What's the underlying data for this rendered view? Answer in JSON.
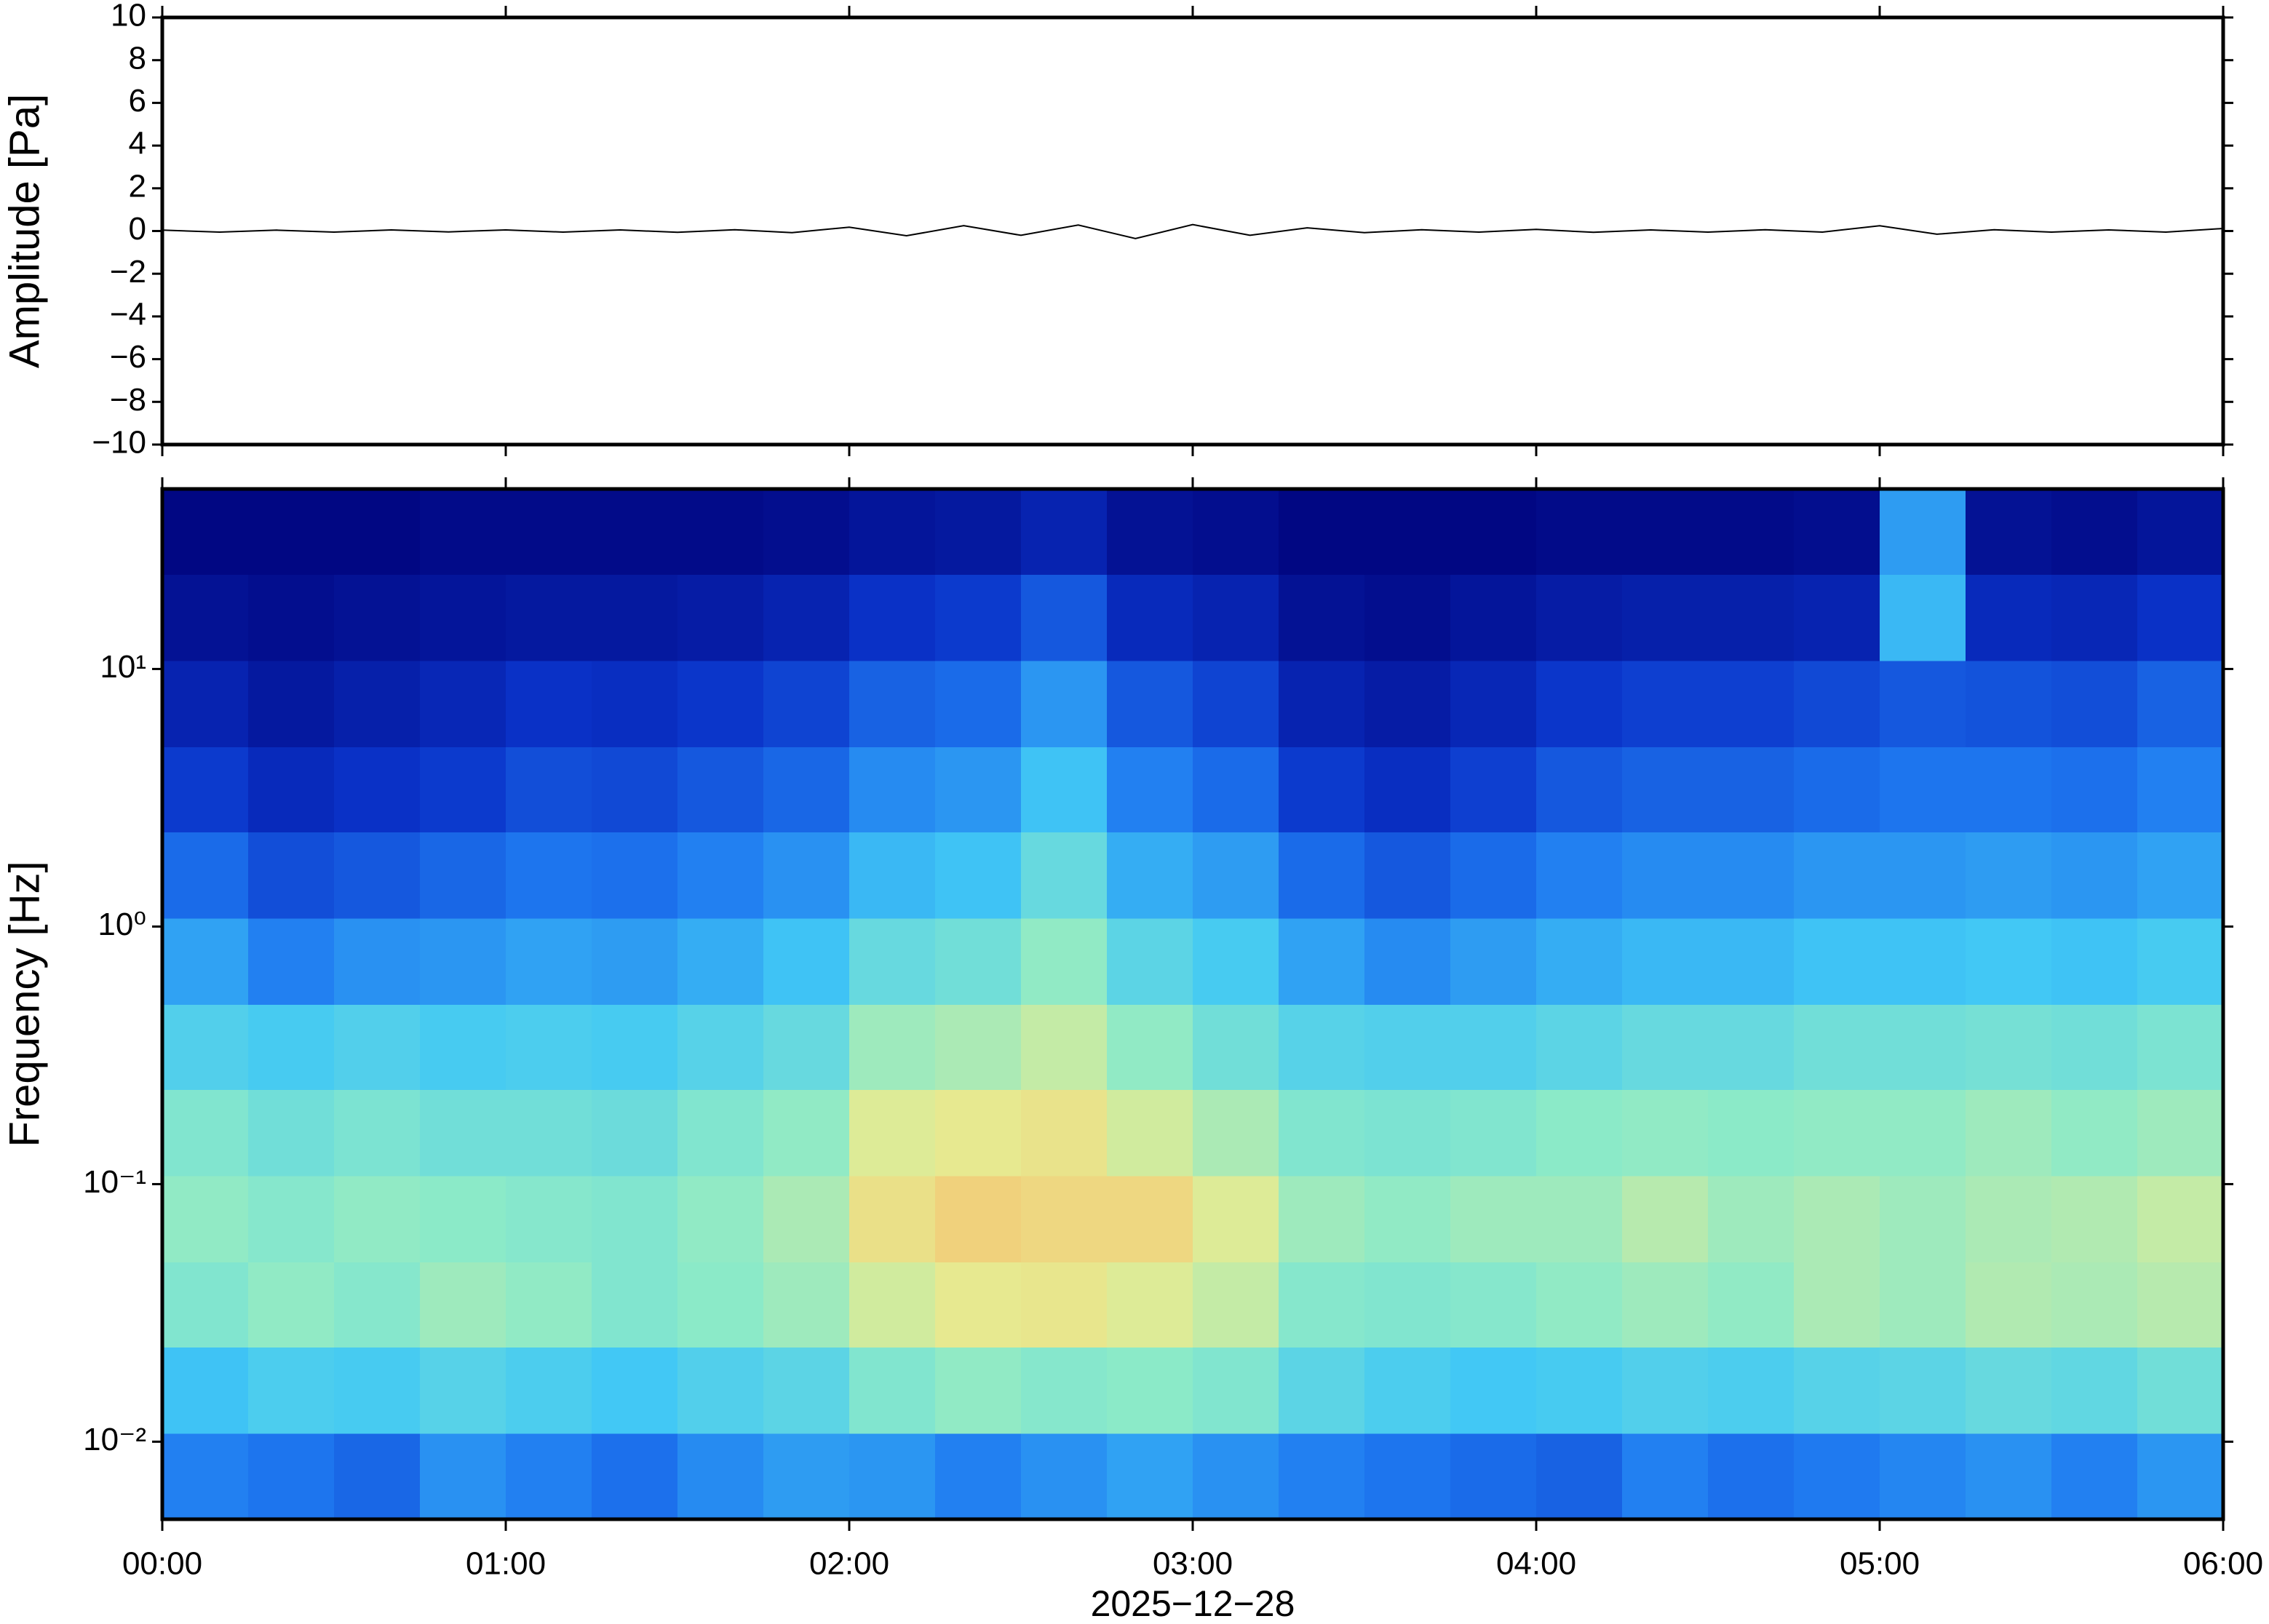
{
  "chart_data": [
    {
      "type": "line",
      "ylabel": "Amplitude [Pa]",
      "x": [
        0,
        10,
        20,
        30,
        40,
        50,
        60,
        70,
        80,
        90,
        100,
        110,
        120,
        130,
        140,
        150,
        160,
        170,
        180,
        190,
        200,
        210,
        220,
        230,
        240,
        250,
        260,
        270,
        280,
        290,
        300,
        310,
        320,
        330,
        340,
        350,
        360
      ],
      "values": [
        0.04,
        -0.05,
        0.04,
        -0.05,
        0.05,
        -0.04,
        0.05,
        -0.05,
        0.05,
        -0.06,
        0.06,
        -0.08,
        0.18,
        -0.22,
        0.25,
        -0.2,
        0.28,
        -0.35,
        0.3,
        -0.2,
        0.15,
        -0.08,
        0.06,
        -0.05,
        0.08,
        -0.06,
        0.05,
        -0.05,
        0.06,
        -0.05,
        0.25,
        -0.15,
        0.06,
        -0.05,
        0.05,
        -0.05,
        0.12
      ],
      "color": "#000000",
      "xlim": [
        0,
        360
      ],
      "xticks": [
        0,
        60,
        120,
        180,
        240,
        300,
        360
      ],
      "ylim": [
        -10,
        10
      ],
      "yticks": [
        {
          "value": -10,
          "label": "−10"
        },
        {
          "value": -8,
          "label": "−8"
        },
        {
          "value": -6,
          "label": "−6"
        },
        {
          "value": -4,
          "label": "−4"
        },
        {
          "value": -2,
          "label": "−2"
        },
        0,
        2,
        4,
        6,
        8,
        10
      ]
    },
    {
      "type": "heatmap",
      "ylabel": "Frequency [Hz]",
      "xlabel": "2025−12−28",
      "ylog": true,
      "x": [
        0,
        15,
        30,
        45,
        60,
        75,
        90,
        105,
        120,
        135,
        150,
        165,
        180,
        195,
        210,
        225,
        240,
        255,
        270,
        285,
        300,
        315,
        330,
        345,
        360
      ],
      "y": [
        0.005,
        0.0108,
        0.0233,
        0.05,
        0.108,
        0.233,
        0.5,
        1.08,
        2.33,
        5,
        10.8,
        23.3,
        50
      ],
      "values": [
        [
          0.3,
          0.28,
          0.25,
          0.33,
          0.3,
          0.27,
          0.32,
          0.35,
          0.34,
          0.3,
          0.33,
          0.36,
          0.33,
          0.3,
          0.28,
          0.26,
          0.24,
          0.3,
          0.27,
          0.29,
          0.31,
          0.33,
          0.3,
          0.34
        ],
        [
          0.42,
          0.45,
          0.44,
          0.47,
          0.45,
          0.43,
          0.46,
          0.48,
          0.55,
          0.58,
          0.56,
          0.57,
          0.55,
          0.48,
          0.45,
          0.43,
          0.44,
          0.46,
          0.45,
          0.47,
          0.48,
          0.5,
          0.49,
          0.52
        ],
        [
          0.55,
          0.58,
          0.56,
          0.6,
          0.58,
          0.55,
          0.57,
          0.6,
          0.68,
          0.72,
          0.73,
          0.7,
          0.66,
          0.56,
          0.55,
          0.56,
          0.58,
          0.6,
          0.58,
          0.62,
          0.6,
          0.63,
          0.62,
          0.64
        ],
        [
          0.58,
          0.56,
          0.58,
          0.57,
          0.56,
          0.55,
          0.58,
          0.62,
          0.75,
          0.8,
          0.78,
          0.78,
          0.7,
          0.6,
          0.58,
          0.6,
          0.6,
          0.64,
          0.6,
          0.62,
          0.6,
          0.62,
          0.63,
          0.66
        ],
        [
          0.55,
          0.52,
          0.54,
          0.52,
          0.52,
          0.51,
          0.55,
          0.58,
          0.7,
          0.72,
          0.74,
          0.68,
          0.62,
          0.55,
          0.54,
          0.55,
          0.57,
          0.58,
          0.57,
          0.58,
          0.58,
          0.6,
          0.58,
          0.6
        ],
        [
          0.46,
          0.44,
          0.46,
          0.44,
          0.45,
          0.44,
          0.47,
          0.5,
          0.6,
          0.62,
          0.66,
          0.58,
          0.52,
          0.47,
          0.46,
          0.46,
          0.48,
          0.5,
          0.5,
          0.52,
          0.52,
          0.53,
          0.52,
          0.54
        ],
        [
          0.36,
          0.3,
          0.33,
          0.34,
          0.36,
          0.35,
          0.38,
          0.42,
          0.5,
          0.52,
          0.58,
          0.48,
          0.44,
          0.36,
          0.32,
          0.35,
          0.38,
          0.4,
          0.4,
          0.42,
          0.42,
          0.43,
          0.42,
          0.44
        ],
        [
          0.26,
          0.2,
          0.22,
          0.25,
          0.28,
          0.27,
          0.3,
          0.33,
          0.4,
          0.42,
          0.5,
          0.38,
          0.35,
          0.26,
          0.22,
          0.26,
          0.3,
          0.32,
          0.32,
          0.34,
          0.34,
          0.35,
          0.34,
          0.36
        ],
        [
          0.16,
          0.12,
          0.14,
          0.16,
          0.2,
          0.19,
          0.22,
          0.25,
          0.32,
          0.34,
          0.42,
          0.3,
          0.26,
          0.16,
          0.13,
          0.17,
          0.22,
          0.24,
          0.24,
          0.26,
          0.28,
          0.28,
          0.27,
          0.3
        ],
        [
          0.1,
          0.07,
          0.09,
          0.11,
          0.14,
          0.13,
          0.15,
          0.18,
          0.24,
          0.26,
          0.34,
          0.22,
          0.18,
          0.1,
          0.08,
          0.11,
          0.15,
          0.17,
          0.17,
          0.19,
          0.22,
          0.21,
          0.2,
          0.24
        ],
        [
          0.05,
          0.04,
          0.05,
          0.06,
          0.07,
          0.07,
          0.08,
          0.1,
          0.14,
          0.16,
          0.22,
          0.12,
          0.1,
          0.05,
          0.04,
          0.06,
          0.08,
          0.09,
          0.09,
          0.1,
          0.4,
          0.12,
          0.11,
          0.14
        ],
        [
          0.02,
          0.02,
          0.02,
          0.03,
          0.03,
          0.03,
          0.03,
          0.04,
          0.06,
          0.07,
          0.1,
          0.05,
          0.04,
          0.02,
          0.02,
          0.02,
          0.03,
          0.03,
          0.03,
          0.04,
          0.35,
          0.05,
          0.04,
          0.06
        ]
      ],
      "colormap": [
        "#000078",
        "#0a32c8",
        "#1e78f0",
        "#41c8f5",
        "#8ceac8",
        "#e6eb91",
        "#f7c06e",
        "#f58732"
      ],
      "xlim": [
        0,
        360
      ],
      "xticks": [
        {
          "value": 0,
          "label": "00:00"
        },
        {
          "value": 60,
          "label": "01:00"
        },
        {
          "value": 120,
          "label": "02:00"
        },
        {
          "value": 180,
          "label": "03:00"
        },
        {
          "value": 240,
          "label": "04:00"
        },
        {
          "value": 300,
          "label": "05:00"
        },
        {
          "value": 360,
          "label": "06:00"
        }
      ],
      "ylim": [
        0.005,
        50
      ],
      "yticks": [
        {
          "value": 0.01,
          "label": "10⁻²"
        },
        {
          "value": 0.1,
          "label": "10⁻¹"
        },
        {
          "value": 1,
          "label": "10⁰"
        },
        {
          "value": 10,
          "label": "10¹"
        }
      ]
    }
  ]
}
